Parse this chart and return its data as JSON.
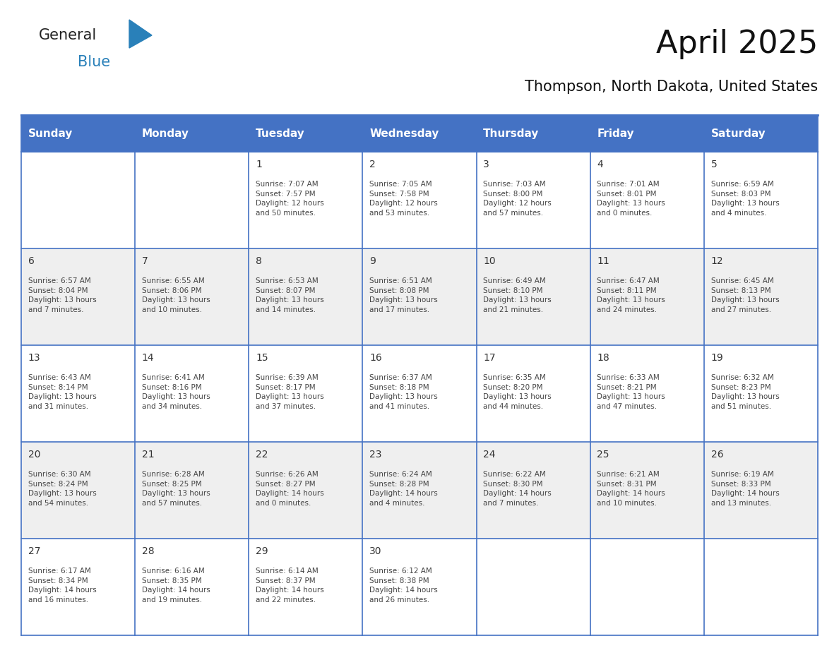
{
  "title": "April 2025",
  "subtitle": "Thompson, North Dakota, United States",
  "header_color": "#4472C4",
  "header_text_color": "#FFFFFF",
  "cell_bg_color": "#FFFFFF",
  "alt_cell_bg_color": "#EFEFEF",
  "border_color": "#4472C4",
  "day_number_color": "#333333",
  "cell_text_color": "#444444",
  "weekdays": [
    "Sunday",
    "Monday",
    "Tuesday",
    "Wednesday",
    "Thursday",
    "Friday",
    "Saturday"
  ],
  "weeks": [
    [
      {
        "day": "",
        "text": ""
      },
      {
        "day": "",
        "text": ""
      },
      {
        "day": "1",
        "text": "Sunrise: 7:07 AM\nSunset: 7:57 PM\nDaylight: 12 hours\nand 50 minutes."
      },
      {
        "day": "2",
        "text": "Sunrise: 7:05 AM\nSunset: 7:58 PM\nDaylight: 12 hours\nand 53 minutes."
      },
      {
        "day": "3",
        "text": "Sunrise: 7:03 AM\nSunset: 8:00 PM\nDaylight: 12 hours\nand 57 minutes."
      },
      {
        "day": "4",
        "text": "Sunrise: 7:01 AM\nSunset: 8:01 PM\nDaylight: 13 hours\nand 0 minutes."
      },
      {
        "day": "5",
        "text": "Sunrise: 6:59 AM\nSunset: 8:03 PM\nDaylight: 13 hours\nand 4 minutes."
      }
    ],
    [
      {
        "day": "6",
        "text": "Sunrise: 6:57 AM\nSunset: 8:04 PM\nDaylight: 13 hours\nand 7 minutes."
      },
      {
        "day": "7",
        "text": "Sunrise: 6:55 AM\nSunset: 8:06 PM\nDaylight: 13 hours\nand 10 minutes."
      },
      {
        "day": "8",
        "text": "Sunrise: 6:53 AM\nSunset: 8:07 PM\nDaylight: 13 hours\nand 14 minutes."
      },
      {
        "day": "9",
        "text": "Sunrise: 6:51 AM\nSunset: 8:08 PM\nDaylight: 13 hours\nand 17 minutes."
      },
      {
        "day": "10",
        "text": "Sunrise: 6:49 AM\nSunset: 8:10 PM\nDaylight: 13 hours\nand 21 minutes."
      },
      {
        "day": "11",
        "text": "Sunrise: 6:47 AM\nSunset: 8:11 PM\nDaylight: 13 hours\nand 24 minutes."
      },
      {
        "day": "12",
        "text": "Sunrise: 6:45 AM\nSunset: 8:13 PM\nDaylight: 13 hours\nand 27 minutes."
      }
    ],
    [
      {
        "day": "13",
        "text": "Sunrise: 6:43 AM\nSunset: 8:14 PM\nDaylight: 13 hours\nand 31 minutes."
      },
      {
        "day": "14",
        "text": "Sunrise: 6:41 AM\nSunset: 8:16 PM\nDaylight: 13 hours\nand 34 minutes."
      },
      {
        "day": "15",
        "text": "Sunrise: 6:39 AM\nSunset: 8:17 PM\nDaylight: 13 hours\nand 37 minutes."
      },
      {
        "day": "16",
        "text": "Sunrise: 6:37 AM\nSunset: 8:18 PM\nDaylight: 13 hours\nand 41 minutes."
      },
      {
        "day": "17",
        "text": "Sunrise: 6:35 AM\nSunset: 8:20 PM\nDaylight: 13 hours\nand 44 minutes."
      },
      {
        "day": "18",
        "text": "Sunrise: 6:33 AM\nSunset: 8:21 PM\nDaylight: 13 hours\nand 47 minutes."
      },
      {
        "day": "19",
        "text": "Sunrise: 6:32 AM\nSunset: 8:23 PM\nDaylight: 13 hours\nand 51 minutes."
      }
    ],
    [
      {
        "day": "20",
        "text": "Sunrise: 6:30 AM\nSunset: 8:24 PM\nDaylight: 13 hours\nand 54 minutes."
      },
      {
        "day": "21",
        "text": "Sunrise: 6:28 AM\nSunset: 8:25 PM\nDaylight: 13 hours\nand 57 minutes."
      },
      {
        "day": "22",
        "text": "Sunrise: 6:26 AM\nSunset: 8:27 PM\nDaylight: 14 hours\nand 0 minutes."
      },
      {
        "day": "23",
        "text": "Sunrise: 6:24 AM\nSunset: 8:28 PM\nDaylight: 14 hours\nand 4 minutes."
      },
      {
        "day": "24",
        "text": "Sunrise: 6:22 AM\nSunset: 8:30 PM\nDaylight: 14 hours\nand 7 minutes."
      },
      {
        "day": "25",
        "text": "Sunrise: 6:21 AM\nSunset: 8:31 PM\nDaylight: 14 hours\nand 10 minutes."
      },
      {
        "day": "26",
        "text": "Sunrise: 6:19 AM\nSunset: 8:33 PM\nDaylight: 14 hours\nand 13 minutes."
      }
    ],
    [
      {
        "day": "27",
        "text": "Sunrise: 6:17 AM\nSunset: 8:34 PM\nDaylight: 14 hours\nand 16 minutes."
      },
      {
        "day": "28",
        "text": "Sunrise: 6:16 AM\nSunset: 8:35 PM\nDaylight: 14 hours\nand 19 minutes."
      },
      {
        "day": "29",
        "text": "Sunrise: 6:14 AM\nSunset: 8:37 PM\nDaylight: 14 hours\nand 22 minutes."
      },
      {
        "day": "30",
        "text": "Sunrise: 6:12 AM\nSunset: 8:38 PM\nDaylight: 14 hours\nand 26 minutes."
      },
      {
        "day": "",
        "text": ""
      },
      {
        "day": "",
        "text": ""
      },
      {
        "day": "",
        "text": ""
      }
    ]
  ],
  "logo_general_color": "#222222",
  "logo_blue_color": "#2980B9",
  "logo_triangle_color": "#2980B9",
  "title_fontsize": 32,
  "subtitle_fontsize": 15,
  "header_fontsize": 11,
  "day_number_fontsize": 10,
  "cell_text_fontsize": 7.5
}
